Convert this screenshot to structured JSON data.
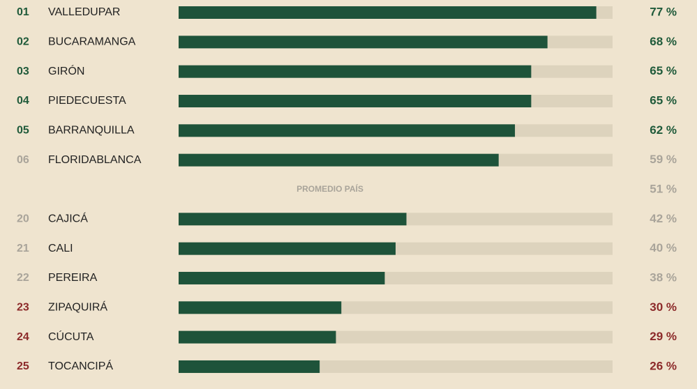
{
  "chart_data": {
    "type": "bar",
    "orientation": "horizontal",
    "ranks": [
      "01",
      "02",
      "03",
      "04",
      "05",
      "06",
      "20",
      "21",
      "22",
      "23",
      "24",
      "25"
    ],
    "categories": [
      "VALLEDUPAR",
      "BUCARAMANGA",
      "GIRÓN",
      "PIEDECUESTA",
      "BARRANQUILLA",
      "FLORIDABLANCA",
      "CAJICÁ",
      "CALI",
      "PEREIRA",
      "ZIPAQUIRÁ",
      "CÚCUTA",
      "TOCANCIPÁ"
    ],
    "values": [
      77,
      68,
      65,
      65,
      62,
      59,
      42,
      40,
      38,
      30,
      29,
      26
    ],
    "value_labels": [
      "77 %",
      "68 %",
      "65 %",
      "65 %",
      "62 %",
      "59 %",
      "42 %",
      "40 %",
      "38 %",
      "30 %",
      "29 %",
      "26 %"
    ],
    "rank_colors": [
      "#1f5a3a",
      "#1f5a3a",
      "#1f5a3a",
      "#1f5a3a",
      "#1f5a3a",
      "#a9a49a",
      "#a9a49a",
      "#a9a49a",
      "#a9a49a",
      "#8c2a2a",
      "#8c2a2a",
      "#8c2a2a"
    ],
    "average": {
      "label": "PROMEDIO PAÍS",
      "value": 51,
      "value_label": "51 %",
      "color": "#a9a49a"
    },
    "color": "#1e533a",
    "track_color": "#ddd3bd",
    "background": "#efe4cf",
    "xlim": [
      0,
      80
    ]
  }
}
